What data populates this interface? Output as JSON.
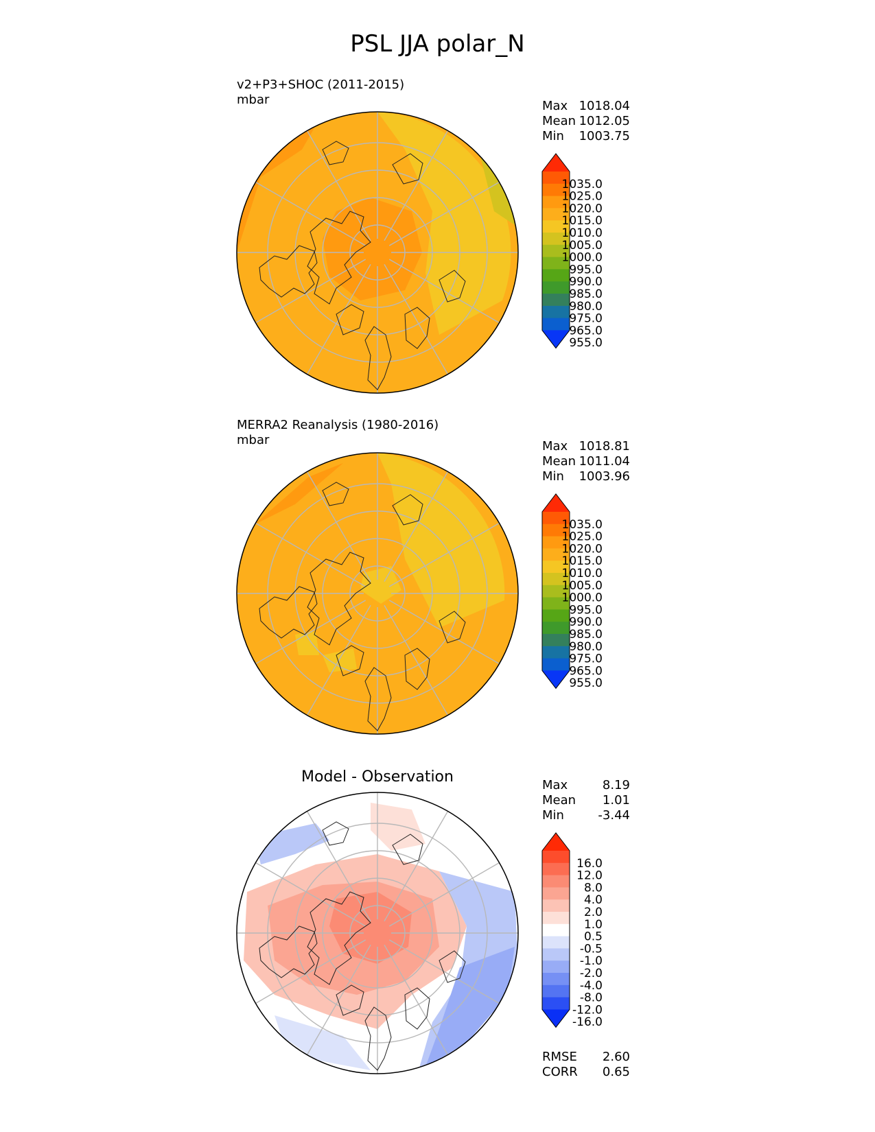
{
  "chart_data": {
    "title": "PSL JJA polar_N",
    "panels": [
      {
        "type": "heatmap",
        "projection": "north-polar-stereographic",
        "title": "v2+P3+SHOC (2011-2015)",
        "units": "mbar",
        "stats": [
          {
            "label": "Max",
            "value": "1018.04"
          },
          {
            "label": "Mean",
            "value": "1012.05"
          },
          {
            "label": "Min",
            "value": "1003.75"
          }
        ],
        "colorbar": {
          "levels": [
            "1035.0",
            "1025.0",
            "1020.0",
            "1015.0",
            "1010.0",
            "1005.0",
            "1000.0",
            "995.0",
            "990.0",
            "985.0",
            "980.0",
            "975.0",
            "965.0",
            "955.0"
          ],
          "colors": [
            "#ff2a05",
            "#ff5a05",
            "#ff7a05",
            "#ff9a10",
            "#fdae1b",
            "#f5c623",
            "#d4c31f",
            "#a9bd1d",
            "#7fb31a",
            "#56a616",
            "#3f9a2b",
            "#34805c",
            "#1773a3",
            "#0b5fcf",
            "#0836f6"
          ]
        }
      },
      {
        "type": "heatmap",
        "projection": "north-polar-stereographic",
        "title": "MERRA2 Reanalysis (1980-2016)",
        "units": "mbar",
        "stats": [
          {
            "label": "Max",
            "value": "1018.81"
          },
          {
            "label": "Mean",
            "value": "1011.04"
          },
          {
            "label": "Min",
            "value": "1003.96"
          }
        ],
        "colorbar": {
          "levels": [
            "1035.0",
            "1025.0",
            "1020.0",
            "1015.0",
            "1010.0",
            "1005.0",
            "1000.0",
            "995.0",
            "990.0",
            "985.0",
            "980.0",
            "975.0",
            "965.0",
            "955.0"
          ],
          "colors": [
            "#ff2a05",
            "#ff5a05",
            "#ff7a05",
            "#ff9a10",
            "#fdae1b",
            "#f5c623",
            "#d4c31f",
            "#a9bd1d",
            "#7fb31a",
            "#56a616",
            "#3f9a2b",
            "#34805c",
            "#1773a3",
            "#0b5fcf",
            "#0836f6"
          ]
        }
      },
      {
        "type": "heatmap",
        "projection": "north-polar-stereographic",
        "title": "Model - Observation",
        "units": "",
        "stats": [
          {
            "label": "Max",
            "value": "8.19"
          },
          {
            "label": "Mean",
            "value": "1.01"
          },
          {
            "label": "Min",
            "value": "-3.44"
          }
        ],
        "colorbar": {
          "levels": [
            "16.0",
            "12.0",
            "8.0",
            "4.0",
            "2.0",
            "1.0",
            "0.5",
            "-0.5",
            "-1.0",
            "-2.0",
            "-4.0",
            "-8.0",
            "-12.0",
            "-16.0"
          ],
          "colors": [
            "#ff2a05",
            "#fd4d2c",
            "#fc6d52",
            "#fb8b74",
            "#fba592",
            "#fcc3b5",
            "#fde0d8",
            "#ffffff",
            "#dce3fb",
            "#bac8f8",
            "#98acf6",
            "#7690f4",
            "#5474f2",
            "#2b4ff4",
            "#0a30f6"
          ]
        },
        "metrics": [
          {
            "label": "RMSE",
            "value": "2.60"
          },
          {
            "label": "CORR",
            "value": "0.65"
          }
        ]
      }
    ]
  }
}
